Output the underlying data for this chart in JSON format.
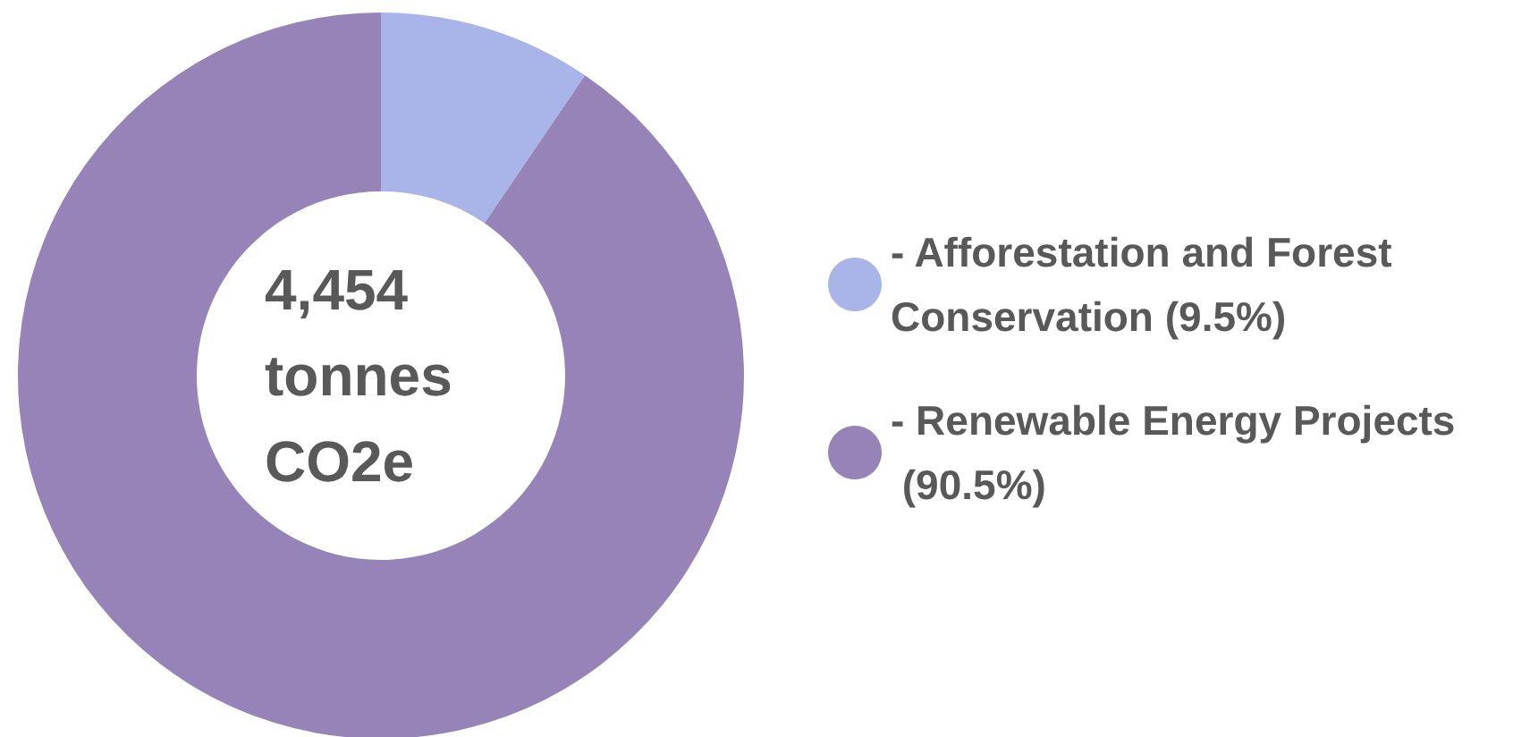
{
  "chart_data": {
    "type": "donut",
    "categories": [
      "- Afforestation and Forest Conservation (9.5%)",
      "- Renewable Energy Projects (90.5%)"
    ],
    "values": [
      9.5,
      90.5
    ],
    "colors": [
      "#a9b5e8",
      "#9684b8"
    ],
    "annotations": [
      "4,454 tonnes CO2e"
    ],
    "legend": "right"
  }
}
